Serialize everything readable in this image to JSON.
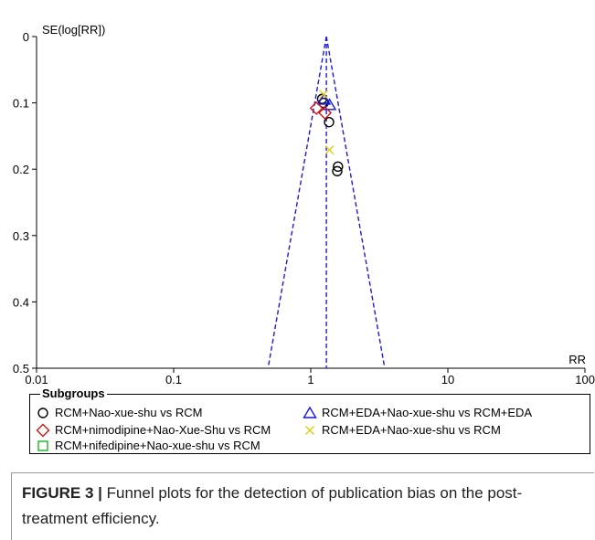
{
  "chart_data": {
    "type": "scatter",
    "title": "",
    "xlabel": "RR",
    "ylabel": "SE(log[RR])",
    "x_scale": "log",
    "xlim": [
      0.01,
      100
    ],
    "ylim": [
      0,
      0.5
    ],
    "y_inverted": true,
    "x_ticks": [
      "0.01",
      "0.1",
      "1",
      "10",
      "100"
    ],
    "y_ticks": [
      "0",
      "0.1",
      "0.2",
      "0.3",
      "0.4",
      "0.5"
    ],
    "pooled_rr": 1.3,
    "funnel_ci": "95%",
    "funnel_color": "#1a1adf",
    "series": [
      {
        "name": "RCM+Nao-xue-shu vs RCM",
        "marker": "circle",
        "color": "#000000",
        "points": [
          [
            1.21,
            0.094
          ],
          [
            1.24,
            0.1
          ],
          [
            1.36,
            0.129
          ],
          [
            1.58,
            0.196
          ],
          [
            1.56,
            0.203
          ]
        ]
      },
      {
        "name": "RCM+EDA+Nao-xue-shu vs RCM+EDA",
        "marker": "triangle",
        "color": "#1515e0",
        "points": [
          [
            1.25,
            0.095
          ],
          [
            1.37,
            0.103
          ]
        ]
      },
      {
        "name": "RCM+nimodipine+Nao-Xue-Shu vs RCM",
        "marker": "diamond",
        "color": "#d01515",
        "points": [
          [
            1.1,
            0.108
          ],
          [
            1.27,
            0.115
          ]
        ]
      },
      {
        "name": "RCM+EDA+Nao-xue-shu vs RCM",
        "marker": "x",
        "color": "#e2cd14",
        "points": [
          [
            1.24,
            0.087
          ],
          [
            1.37,
            0.171
          ]
        ]
      },
      {
        "name": "RCM+nifedipine+Nao-xue-shu vs RCM",
        "marker": "square",
        "color": "#1cb51c",
        "points": []
      }
    ]
  },
  "legend": {
    "title": "Subgroups",
    "items": [
      {
        "label": "RCM+Nao-xue-shu vs RCM",
        "marker": "circle",
        "color": "#000000"
      },
      {
        "label": "RCM+EDA+Nao-xue-shu vs RCM+EDA",
        "marker": "triangle",
        "color": "#1515e0"
      },
      {
        "label": "RCM+nimodipine+Nao-Xue-Shu vs RCM",
        "marker": "diamond",
        "color": "#d01515"
      },
      {
        "label": "RCM+EDA+Nao-xue-shu vs RCM",
        "marker": "x",
        "color": "#e2cd14"
      },
      {
        "label": "RCM+nifedipine+Nao-xue-shu vs RCM",
        "marker": "square",
        "color": "#1cb51c"
      }
    ]
  },
  "caption": {
    "label": "FIGURE 3 |",
    "text": " Funnel plots for the detection of publication bias on the post-treatment efficiency."
  }
}
